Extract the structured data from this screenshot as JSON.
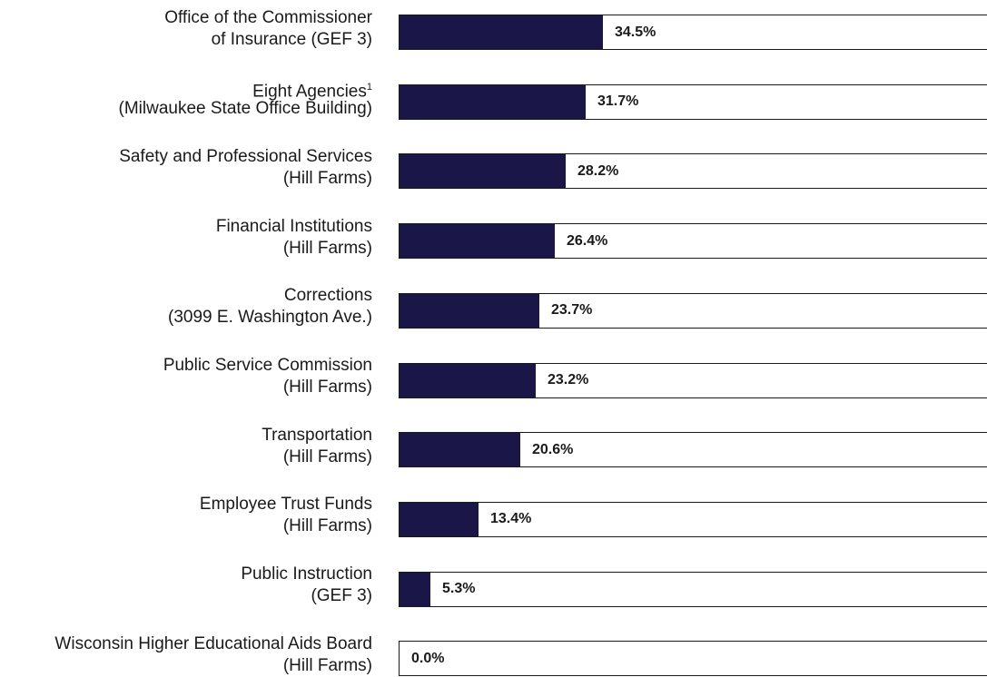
{
  "chart_data": {
    "type": "bar",
    "orientation": "horizontal",
    "title": "",
    "xlabel": "",
    "ylabel": "",
    "xlim": [
      0,
      100
    ],
    "grid": false,
    "legend": "none",
    "bar_color": "#1b1648",
    "frame_color": "#1a1a1a",
    "categories": [
      {
        "lines": [
          "Office of the Commissioner",
          "of Insurance (GEF 3)"
        ],
        "footnote": ""
      },
      {
        "lines": [
          "Eight Agencies",
          "(Milwaukee State Office Building)"
        ],
        "footnote": "1"
      },
      {
        "lines": [
          "Safety and Professional Services",
          "(Hill Farms)"
        ],
        "footnote": ""
      },
      {
        "lines": [
          "Financial Institutions",
          "(Hill Farms)"
        ],
        "footnote": ""
      },
      {
        "lines": [
          "Corrections",
          "(3099 E. Washington Ave.)"
        ],
        "footnote": ""
      },
      {
        "lines": [
          "Public Service Commission",
          "(Hill Farms)"
        ],
        "footnote": ""
      },
      {
        "lines": [
          "Transportation",
          "(Hill Farms)"
        ],
        "footnote": ""
      },
      {
        "lines": [
          "Employee Trust Funds",
          "(Hill Farms)"
        ],
        "footnote": ""
      },
      {
        "lines": [
          "Public Instruction",
          "(GEF 3)"
        ],
        "footnote": ""
      },
      {
        "lines": [
          "Wisconsin Higher Educational Aids Board",
          "(Hill Farms)"
        ],
        "footnote": ""
      }
    ],
    "values": [
      34.5,
      31.7,
      28.2,
      26.4,
      23.7,
      23.2,
      20.6,
      13.4,
      5.3,
      0.0
    ],
    "value_labels": [
      "34.5%",
      "31.7%",
      "28.2%",
      "26.4%",
      "23.7%",
      "23.2%",
      "20.6%",
      "13.4%",
      "5.3%",
      "0.0%"
    ]
  }
}
